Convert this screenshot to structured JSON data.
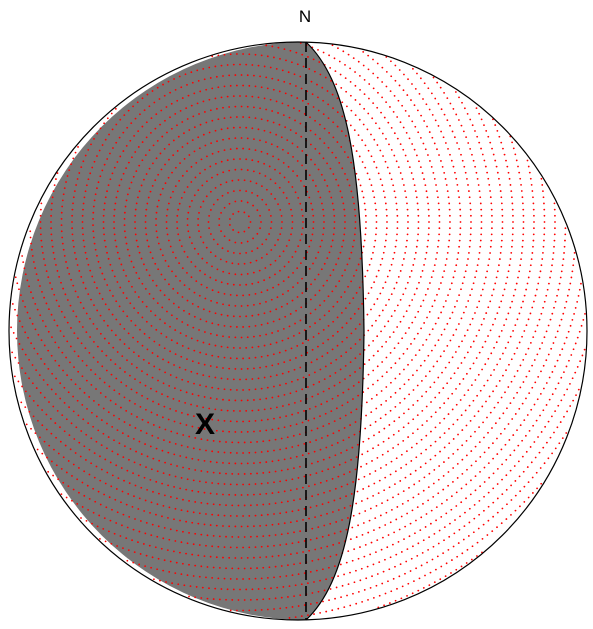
{
  "labels": {
    "north": "N",
    "marker": "X"
  },
  "colors": {
    "shaded_region": "#777777",
    "dots": "#ff0000",
    "outline": "#000000",
    "background": "#ffffff",
    "marker": "#000000"
  },
  "elements": {
    "dashed_meridian": "north-south",
    "shaded_hemisphere": "west",
    "dot_pattern": "concentric-rings"
  }
}
